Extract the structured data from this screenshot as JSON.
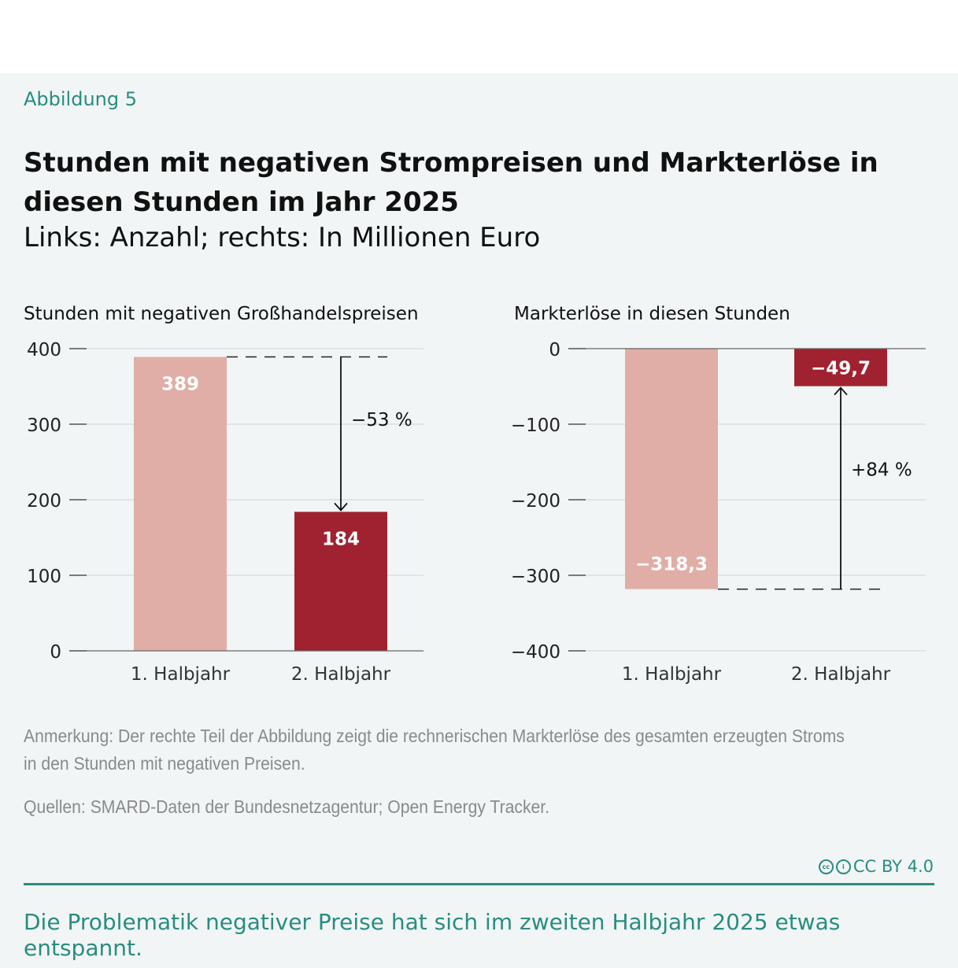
{
  "figure_label": "Abbildung 5",
  "title": "Stunden mit negativen Strompreisen und Markterlöse in diesen Stunden im Jahr 2025",
  "subtitle": "Links: Anzahl; rechts: In Millionen Euro",
  "note": "Anmerkung: Der rechte Teil der Abbildung zeigt die rechnerischen Markterlöse des gesamten erzeugten Stroms in den Stunden mit negativen Preisen.",
  "source": "Quellen: SMARD-Daten der Bundesnetzagentur; Open Energy Tracker.",
  "license": "CC BY 4.0",
  "takeaway": "Die Problematik negativer Preise hat sich im zweiten Halbjahr 2025 etwas entspannt.",
  "colors": {
    "first_half": "#e0aea6",
    "second_half": "#a02230",
    "accent": "#2a8c80"
  },
  "chart_data": [
    {
      "type": "bar",
      "title": "Stunden mit negativen Großhandelspreisen",
      "categories": [
        "1. Halbjahr",
        "2. Halbjahr"
      ],
      "values": [
        389,
        184
      ],
      "value_labels": [
        "389",
        "184"
      ],
      "ylim": [
        0,
        400
      ],
      "yticks": [
        0,
        100,
        200,
        300,
        400
      ],
      "ytick_labels": [
        "0",
        "100",
        "200",
        "300",
        "400"
      ],
      "grid": true,
      "annotation": "−53 %"
    },
    {
      "type": "bar",
      "title": "Markterlöse in diesen Stunden",
      "categories": [
        "1. Halbjahr",
        "2. Halbjahr"
      ],
      "values": [
        -318.3,
        -49.7
      ],
      "value_labels": [
        "−318,3",
        "−49,7"
      ],
      "ylim": [
        -400,
        0
      ],
      "yticks": [
        0,
        -100,
        -200,
        -300,
        -400
      ],
      "ytick_labels": [
        "0",
        "−100",
        "−200",
        "−300",
        "−400"
      ],
      "grid": true,
      "annotation": "+84 %"
    }
  ]
}
